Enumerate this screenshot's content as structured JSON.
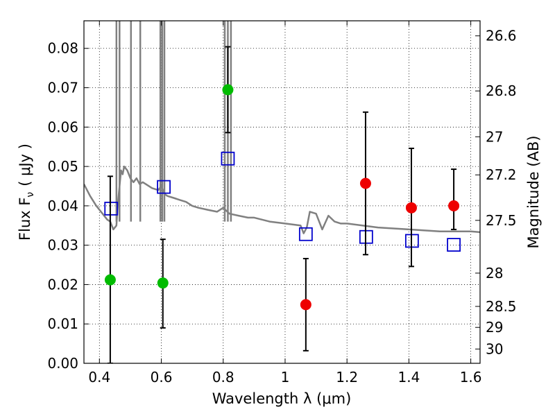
{
  "chart_data": {
    "type": "scatter",
    "title": "",
    "xlabel": "Wavelength  λ (μm)",
    "ylabel": "Flux  F",
    "ylabel_sub": "ν",
    "ylabel_unit": "( μJy )",
    "y2label": "Magnitude (AB)",
    "xlim": [
      0.35,
      1.63
    ],
    "ylim": [
      0.0,
      0.087
    ],
    "grid": true,
    "x_ticks": [
      {
        "v": 0.4,
        "label": "0.4"
      },
      {
        "v": 0.6,
        "label": "0.6"
      },
      {
        "v": 0.8,
        "label": "0.8"
      },
      {
        "v": 1.0,
        "label": "1"
      },
      {
        "v": 1.2,
        "label": "1.2"
      },
      {
        "v": 1.4,
        "label": "1.4"
      },
      {
        "v": 1.6,
        "label": "1.6"
      }
    ],
    "y_ticks": [
      {
        "v": 0.0,
        "label": "0.00"
      },
      {
        "v": 0.01,
        "label": "0.01"
      },
      {
        "v": 0.02,
        "label": "0.02"
      },
      {
        "v": 0.03,
        "label": "0.03"
      },
      {
        "v": 0.04,
        "label": "0.04"
      },
      {
        "v": 0.05,
        "label": "0.05"
      },
      {
        "v": 0.06,
        "label": "0.06"
      },
      {
        "v": 0.07,
        "label": "0.07"
      },
      {
        "v": 0.08,
        "label": "0.08"
      }
    ],
    "y2_ticks": [
      {
        "label": "26.6",
        "mag": 26.6
      },
      {
        "label": "26.8",
        "mag": 26.8
      },
      {
        "label": "27",
        "mag": 27.0
      },
      {
        "label": "27.2",
        "mag": 27.2
      },
      {
        "label": "27.5",
        "mag": 27.5
      },
      {
        "label": "28",
        "mag": 28.0
      },
      {
        "label": "28.5",
        "mag": 28.5
      },
      {
        "label": "29",
        "mag": 29.0
      },
      {
        "label": "30",
        "mag": 30.0
      }
    ],
    "series": [
      {
        "kind": "line",
        "color": "#808080",
        "x": [
          0.35,
          0.37,
          0.39,
          0.41,
          0.425,
          0.435,
          0.445,
          0.455,
          0.46,
          0.465,
          0.47,
          0.475,
          0.48,
          0.49,
          0.5,
          0.51,
          0.52,
          0.53,
          0.54,
          0.55,
          0.57,
          0.59,
          0.6,
          0.61,
          0.62,
          0.64,
          0.66,
          0.68,
          0.7,
          0.72,
          0.75,
          0.78,
          0.8,
          0.82,
          0.85,
          0.88,
          0.9,
          0.95,
          1.0,
          1.05,
          1.06,
          1.07,
          1.08,
          1.1,
          1.12,
          1.14,
          1.16,
          1.18,
          1.2,
          1.25,
          1.3,
          1.4,
          1.5,
          1.6,
          1.63
        ],
        "y": [
          0.0455,
          0.0425,
          0.04,
          0.038,
          0.0365,
          0.036,
          0.034,
          0.035,
          0.041,
          0.045,
          0.049,
          0.048,
          0.05,
          0.049,
          0.047,
          0.046,
          0.047,
          0.0455,
          0.046,
          0.0455,
          0.0445,
          0.044,
          0.045,
          0.043,
          0.0425,
          0.042,
          0.0415,
          0.041,
          0.04,
          0.0395,
          0.039,
          0.0385,
          0.0395,
          0.038,
          0.0375,
          0.037,
          0.037,
          0.036,
          0.0355,
          0.035,
          0.033,
          0.0345,
          0.0385,
          0.038,
          0.034,
          0.0375,
          0.036,
          0.0355,
          0.0355,
          0.035,
          0.0345,
          0.034,
          0.0335,
          0.0335,
          0.0333
        ]
      },
      {
        "kind": "spikes",
        "color": "#808080",
        "x": [
          0.455,
          0.465,
          0.502,
          0.532,
          0.597,
          0.603,
          0.61,
          0.805,
          0.815,
          0.825
        ]
      },
      {
        "kind": "open-squares",
        "color": "#0000cc",
        "x": [
          0.438,
          0.608,
          0.815,
          1.067,
          1.262,
          1.41,
          1.545
        ],
        "y": [
          0.0393,
          0.0448,
          0.052,
          0.0328,
          0.0321,
          0.0311,
          0.0301
        ]
      },
      {
        "kind": "filled-circles",
        "color": "#00bb00",
        "x": [
          0.435,
          0.605,
          0.815
        ],
        "y": [
          0.0212,
          0.0204,
          0.0695
        ],
        "err_low": [
          0.0212,
          0.0114,
          0.0109
        ],
        "err_high": [
          0.0263,
          0.0111,
          0.0109
        ]
      },
      {
        "kind": "filled-circles",
        "color": "#ee0000",
        "x": [
          1.067,
          1.26,
          1.408,
          1.545
        ],
        "y": [
          0.0149,
          0.0457,
          0.0395,
          0.04
        ],
        "err_low": [
          0.0117,
          0.0181,
          0.0149,
          0.006
        ],
        "err_high": [
          0.0117,
          0.0181,
          0.0151,
          0.0093
        ]
      }
    ]
  }
}
